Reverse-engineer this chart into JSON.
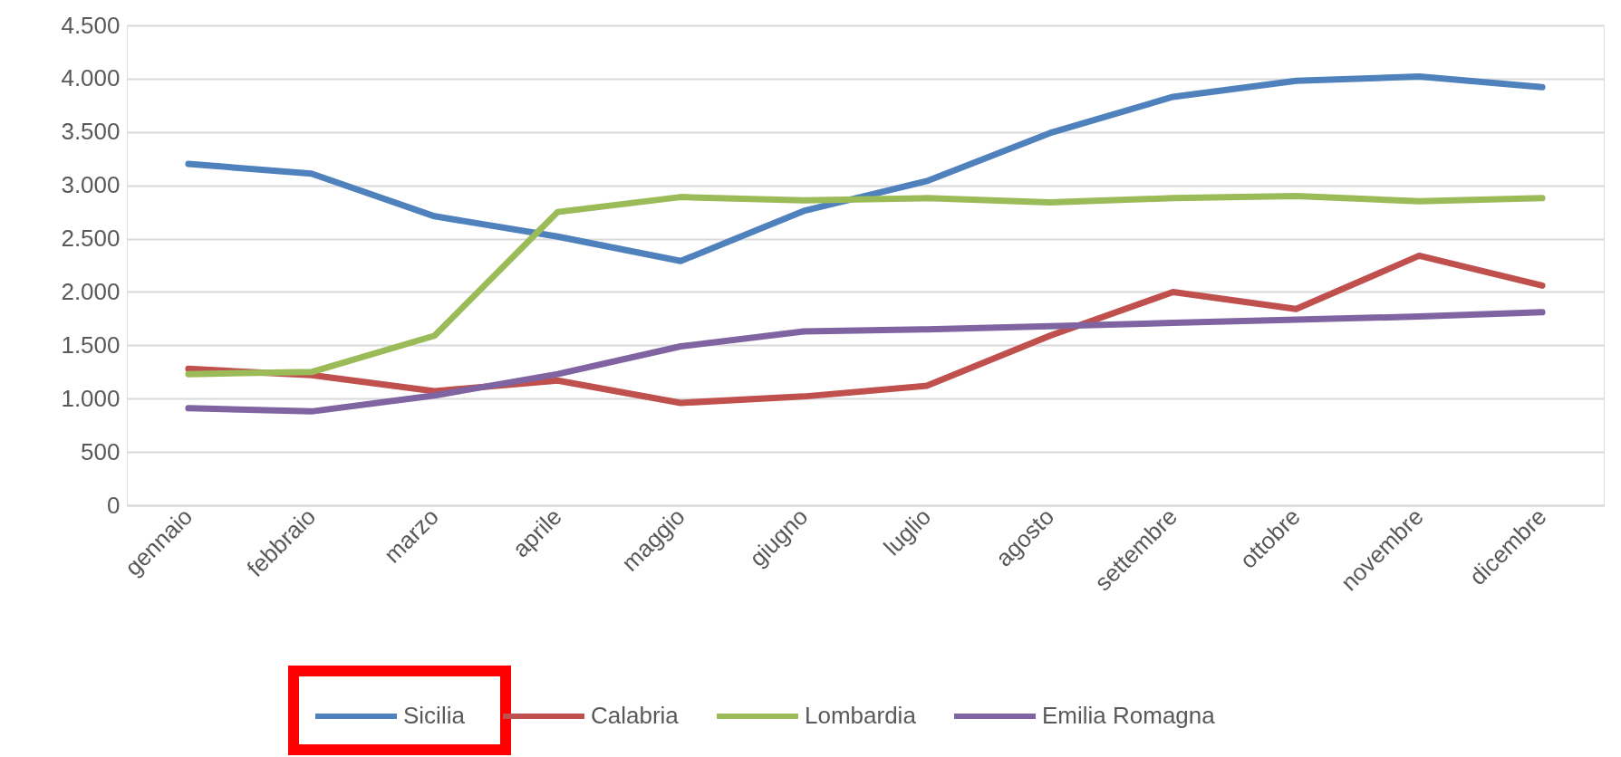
{
  "chart_data": {
    "type": "line",
    "categories": [
      "gennaio",
      "febbraio",
      "marzo",
      "aprile",
      "maggio",
      "giugno",
      "luglio",
      "agosto",
      "settembre",
      "ottobre",
      "novembre",
      "dicembre"
    ],
    "series": [
      {
        "name": "Sicilia",
        "color": "#4f81bd",
        "values": [
          3200,
          3110,
          2710,
          2520,
          2290,
          2760,
          3040,
          3490,
          3830,
          3980,
          4020,
          3920
        ]
      },
      {
        "name": "Calabria",
        "color": "#c0504d",
        "values": [
          1280,
          1220,
          1070,
          1170,
          960,
          1020,
          1120,
          1590,
          2000,
          1840,
          2340,
          2060
        ]
      },
      {
        "name": "Lombardia",
        "color": "#9bbb59",
        "values": [
          1230,
          1250,
          1590,
          2750,
          2890,
          2860,
          2880,
          2840,
          2880,
          2900,
          2850,
          2880
        ]
      },
      {
        "name": "Emilia Romagna",
        "color": "#8064a2",
        "values": [
          910,
          880,
          1030,
          1230,
          1490,
          1630,
          1650,
          1680,
          1710,
          1740,
          1770,
          1810
        ]
      }
    ],
    "ylim": [
      0,
      4500
    ],
    "yticks": [
      0,
      500,
      {
        "value": 1000,
        "label": "1.000"
      },
      {
        "value": 1500,
        "label": "1.500"
      },
      {
        "value": 2000,
        "label": "2.000"
      },
      {
        "value": 2500,
        "label": "2.500"
      },
      {
        "value": 3000,
        "label": "3.000"
      },
      {
        "value": 3500,
        "label": "3.500"
      },
      {
        "value": 4000,
        "label": "4.000"
      },
      {
        "value": 4500,
        "label": "4.500"
      }
    ],
    "grid": "y",
    "legend": "bottom",
    "marker": "none",
    "line_style": "solid"
  }
}
